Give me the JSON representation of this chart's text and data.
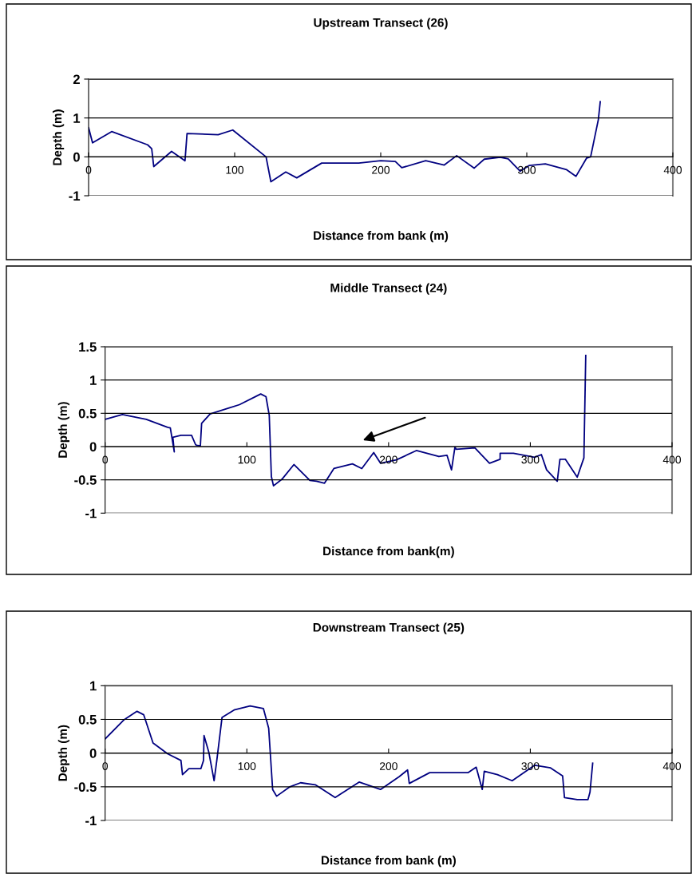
{
  "chart_data": [
    {
      "type": "line",
      "title": "Upstream Transect (26)",
      "xlabel": "Distance from bank (m)",
      "ylabel": "Depth (m)",
      "xlim": [
        0,
        400
      ],
      "ylim": [
        -1,
        2
      ],
      "xticks": [
        0,
        100,
        200,
        300,
        400
      ],
      "yticks": [
        -1,
        0,
        1,
        2
      ],
      "grid": "y",
      "series": [
        {
          "color": "#000080",
          "x": [
            0,
            2.7,
            15.8,
            40.4,
            43.2,
            44.6,
            56.8,
            66,
            67.4,
            88.7,
            98.7,
            121.5,
            124.8,
            135,
            142.5,
            159.6,
            185,
            200,
            210,
            214.4,
            230.8,
            243.5,
            252,
            264,
            270.9,
            281.8,
            287.3,
            295.5,
            301.8,
            312.7,
            327.3,
            333.7,
            341,
            343.7,
            349,
            350.3
          ],
          "values": [
            0.75,
            0.36,
            0.65,
            0.31,
            0.21,
            -0.25,
            0.14,
            -0.1,
            0.6,
            0.57,
            0.69,
            0,
            -0.64,
            -0.39,
            -0.54,
            -0.16,
            -0.16,
            -0.1,
            -0.12,
            -0.28,
            -0.1,
            -0.21,
            0.03,
            -0.29,
            -0.06,
            -0.01,
            -0.05,
            -0.37,
            -0.22,
            -0.18,
            -0.33,
            -0.5,
            -0.03,
            0,
            0.96,
            1.42
          ]
        }
      ]
    },
    {
      "type": "line",
      "title": "Middle Transect (24)",
      "xlabel": "Distance from bank(m)",
      "ylabel": "Depth (m)",
      "xlim": [
        0,
        400
      ],
      "ylim": [
        -1,
        1.5
      ],
      "xticks": [
        0,
        100,
        200,
        300,
        400
      ],
      "yticks": [
        -1,
        -0.5,
        0,
        0.5,
        1,
        1.5
      ],
      "grid": "y",
      "series": [
        {
          "color": "#000080",
          "x": [
            0,
            12.2,
            29,
            44.1,
            46,
            48.8,
            47.8,
            53.5,
            61,
            63.8,
            64.5,
            67.2,
            68.1,
            74.1,
            94.8,
            109.8,
            113.5,
            115.8,
            117.3,
            118.8,
            124.8,
            133.2,
            144.5,
            149.2,
            154.8,
            161.4,
            174.5,
            181.1,
            189.5,
            194.3,
            205.5,
            219.6,
            235.5,
            241.2,
            244.4,
            246.8,
            247.7,
            260.9,
            271.2,
            278.7,
            278.7,
            288.1,
            303.1,
            307.8,
            311.5,
            319,
            320.9,
            324.7,
            333.1,
            337.8,
            339.1
          ],
          "values": [
            0.41,
            0.48,
            0.41,
            0.29,
            0.28,
            -0.08,
            0.14,
            0.17,
            0.17,
            0.03,
            0.02,
            0.01,
            0.35,
            0.49,
            0.63,
            0.79,
            0.75,
            0.47,
            -0.45,
            -0.59,
            -0.49,
            -0.27,
            -0.51,
            -0.52,
            -0.55,
            -0.33,
            -0.26,
            -0.33,
            -0.09,
            -0.25,
            -0.2,
            -0.06,
            -0.15,
            -0.13,
            -0.35,
            -0.01,
            -0.04,
            -0.02,
            -0.25,
            -0.19,
            -0.1,
            -0.1,
            -0.16,
            -0.12,
            -0.35,
            -0.52,
            -0.19,
            -0.19,
            -0.46,
            -0.17,
            1.37
          ]
        }
      ]
    },
    {
      "type": "line",
      "title": "Downstream Transect (25)",
      "xlabel": "Distance from bank (m)",
      "ylabel": "Depth (m)",
      "xlim": [
        0,
        400
      ],
      "ylim": [
        -1,
        1
      ],
      "xticks": [
        0,
        100,
        200,
        300,
        400
      ],
      "yticks": [
        -1,
        -0.5,
        0,
        0.5,
        1
      ],
      "grid": "y",
      "series": [
        {
          "color": "#000080",
          "x": [
            0,
            13.1,
            22.5,
            27.2,
            33.8,
            44.1,
            53.5,
            54.6,
            59.1,
            67.6,
            69.4,
            69.8,
            73.2,
            76.9,
            78.8,
            82.5,
            91,
            102.3,
            111.7,
            115.4,
            118.2,
            121,
            130.4,
            137.9,
            148.3,
            162.3,
            179.2,
            194.3,
            207.4,
            213.4,
            214.6,
            229,
            256.2,
            261.8,
            266.1,
            267.5,
            276.8,
            287.2,
            303.1,
            314.3,
            322.8,
            324.1,
            333.1,
            340.7,
            342.1,
            344
          ],
          "values": [
            0.21,
            0.49,
            0.62,
            0.57,
            0.15,
            -0.01,
            -0.11,
            -0.32,
            -0.23,
            -0.23,
            -0.11,
            0.26,
            0.01,
            -0.41,
            -0.11,
            0.53,
            0.64,
            0.7,
            0.66,
            0.37,
            -0.54,
            -0.64,
            -0.5,
            -0.44,
            -0.47,
            -0.66,
            -0.43,
            -0.54,
            -0.35,
            -0.25,
            -0.45,
            -0.29,
            -0.29,
            -0.21,
            -0.54,
            -0.27,
            -0.32,
            -0.41,
            -0.18,
            -0.22,
            -0.34,
            -0.66,
            -0.69,
            -0.69,
            -0.58,
            -0.15
          ]
        }
      ]
    }
  ]
}
